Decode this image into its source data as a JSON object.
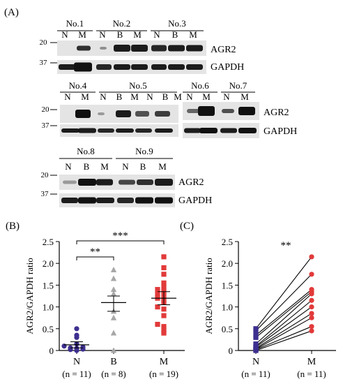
{
  "panel_a": {
    "label": "(A)",
    "groups": [
      {
        "name": "No.1",
        "lanes": [
          "N",
          "M"
        ]
      },
      {
        "name": "No.2",
        "lanes": [
          "N",
          "B",
          "M"
        ]
      },
      {
        "name": "No.3",
        "lanes": [
          "N",
          "B",
          "M"
        ]
      },
      {
        "name": "No.4",
        "lanes": [
          "N",
          "M"
        ]
      },
      {
        "name": "No.5",
        "lanes": [
          "N",
          "B",
          "M",
          "N",
          "B",
          "M"
        ]
      },
      {
        "name": "No.6",
        "lanes": [
          "N",
          "M"
        ]
      },
      {
        "name": "No.7",
        "lanes": [
          "N",
          "M"
        ]
      },
      {
        "name": "No.8",
        "lanes": [
          "N",
          "B",
          "M"
        ]
      },
      {
        "name": "No.9",
        "lanes": [
          "N",
          "B",
          "M"
        ]
      }
    ],
    "markers": [
      "20",
      "37"
    ],
    "bands": [
      "AGR2",
      "GAPDH"
    ]
  },
  "chart_data": [
    {
      "type": "scatter",
      "panel": "(B)",
      "ylabel": "AGR2/GAPDH ratio",
      "ylim": [
        0,
        2.5
      ],
      "yticks": [
        "0",
        "0.5",
        "1.0",
        "1.5",
        "2.0",
        "2.5"
      ],
      "categories": [
        "N",
        "B",
        "M"
      ],
      "counts": [
        "(n = 11)",
        "(n = 8)",
        "(n = 19)"
      ],
      "series": [
        {
          "color": "#3d2f8f",
          "marker": "circle",
          "values": [
            0.0,
            0.02,
            0.03,
            0.05,
            0.06,
            0.08,
            0.1,
            0.15,
            0.3,
            0.35,
            0.5
          ],
          "mean": 0.13,
          "sem": [
            0.06,
            0.2
          ]
        },
        {
          "color": "#a7a7a7",
          "marker": "triangle",
          "values": [
            0.0,
            0.4,
            0.75,
            0.9,
            1.3,
            1.4,
            1.65,
            1.85
          ],
          "mean": 1.1,
          "sem": [
            0.9,
            1.25
          ]
        },
        {
          "color": "#e23a3a",
          "marker": "square",
          "values": [
            0.4,
            0.45,
            0.55,
            0.6,
            0.8,
            0.95,
            1.0,
            1.1,
            1.15,
            1.2,
            1.25,
            1.3,
            1.35,
            1.4,
            1.45,
            1.55,
            1.75,
            1.9,
            2.15
          ],
          "mean": 1.2,
          "sem": [
            1.05,
            1.35
          ]
        }
      ],
      "significance": [
        {
          "from": "N",
          "to": "B",
          "label": "**"
        },
        {
          "from": "N",
          "to": "M",
          "label": "***"
        }
      ]
    },
    {
      "type": "line",
      "panel": "(C)",
      "ylabel": "AGR2/GAPDH ratio",
      "ylim": [
        0,
        2.5
      ],
      "yticks": [
        "0",
        "0.5",
        "1.0",
        "1.5",
        "2.0",
        "2.5"
      ],
      "categories": [
        "N",
        "M"
      ],
      "counts": [
        "(n = 11)",
        "(n = 11)"
      ],
      "colors": {
        "N": "#3d2f8f",
        "M": "#e23a3a"
      },
      "pairs": [
        [
          0.0,
          0.45
        ],
        [
          0.02,
          0.55
        ],
        [
          0.03,
          0.75
        ],
        [
          0.05,
          0.85
        ],
        [
          0.08,
          1.0
        ],
        [
          0.1,
          1.15
        ],
        [
          0.15,
          1.3
        ],
        [
          0.3,
          1.35
        ],
        [
          0.35,
          1.4
        ],
        [
          0.45,
          1.75
        ],
        [
          0.5,
          2.15
        ]
      ],
      "significance": "**"
    }
  ]
}
